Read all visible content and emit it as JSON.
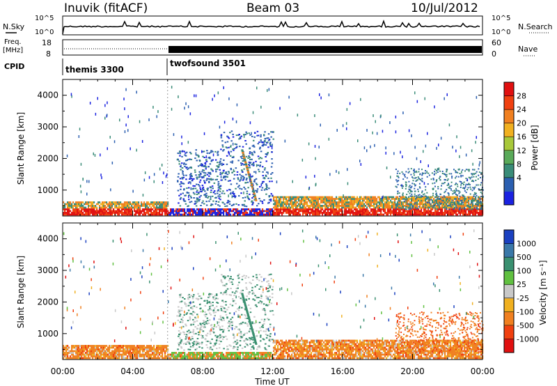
{
  "header": {
    "station": "Inuvik (fitACF)",
    "beam": "Beam 03",
    "date": "10/Jul/2012"
  },
  "top_panels": {
    "nsky_label": "N.Sky",
    "nsky_ticks": [
      "10^5",
      "10^0"
    ],
    "nsearch_label": "N.Search",
    "nsearch_ticks": [
      "10^5",
      "10^0"
    ],
    "freq_label": "Freq.",
    "freq_unit": "[MHz]",
    "freq_ticks": [
      "18",
      "8"
    ],
    "nave_label": "Nave",
    "nave_ticks": [
      "60",
      "0"
    ],
    "cpid_label": "CPID",
    "cpid_segments": [
      {
        "name": "themis 3300",
        "start_hour": 0,
        "end_hour": 6
      },
      {
        "name": "twofsound 3501",
        "start_hour": 6,
        "end_hour": 24
      }
    ]
  },
  "time_axis": {
    "title": "Time UT",
    "ticks": [
      "00:00",
      "04:00",
      "08:00",
      "12:00",
      "16:00",
      "20:00",
      "00:00"
    ],
    "hours": [
      0,
      4,
      8,
      12,
      16,
      20,
      24
    ]
  },
  "chart_data": [
    {
      "type": "heatmap",
      "panel": "power",
      "ylabel": "Slant Range [km]",
      "yticks": [
        1000,
        2000,
        3000,
        4000
      ],
      "ylim": [
        180,
        4500
      ],
      "xlim": [
        0,
        24
      ],
      "colorbar_label": "Power [dB]",
      "colorbar_ticks": [
        "28",
        "24",
        "20",
        "16",
        "12",
        "8",
        "4"
      ],
      "colors": [
        "#1a22e0",
        "#2b5fb0",
        "#3a8c78",
        "#5aaa5a",
        "#a8c83a",
        "#f0b020",
        "#f08020",
        "#f04010",
        "#e01010"
      ]
    },
    {
      "type": "heatmap",
      "panel": "velocity",
      "ylabel": "Slant Range [km]",
      "yticks": [
        1000,
        2000,
        3000,
        4000
      ],
      "ylim": [
        180,
        4500
      ],
      "xlim": [
        0,
        24
      ],
      "colorbar_label": "Velocity [m s⁻¹]",
      "colorbar_ticks": [
        "1000",
        "500",
        "100",
        "25",
        "-25",
        "-100",
        "-500",
        "-1000"
      ],
      "colors": [
        "#1a40c0",
        "#3a78a8",
        "#3a9070",
        "#60c040",
        "#c8c8c8",
        "#f0b020",
        "#f08020",
        "#f04010",
        "#e01010"
      ]
    }
  ]
}
